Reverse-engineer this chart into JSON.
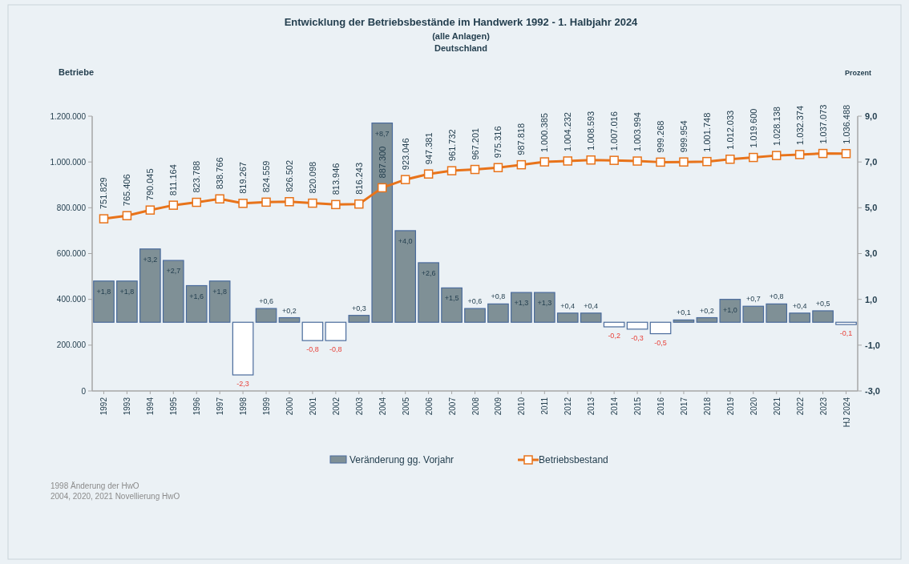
{
  "chart_data": {
    "type": "bar",
    "title": "Entwicklung der Betriebsbestände im Handwerk 1992 - 1. Halbjahr 2024",
    "subtitle": "(alle Anlagen)\nDeutschland",
    "ylabel": "Betriebe",
    "y2label": "Prozent",
    "categories": [
      "1992",
      "1993",
      "1994",
      "1995",
      "1996",
      "1997",
      "1998",
      "1999",
      "2000",
      "2001",
      "2002",
      "2003",
      "2004",
      "2005",
      "2006",
      "2007",
      "2008",
      "2009",
      "2010",
      "2011",
      "2012",
      "2013",
      "2014",
      "2015",
      "2016",
      "2017",
      "2018",
      "2019",
      "2020",
      "2021",
      "2022",
      "2023",
      "HJ 2024"
    ],
    "series": [
      {
        "name": "Veränderung gg. Vorjahr",
        "axis": "y2",
        "colors": [
          "#7f9096",
          "#7f9096",
          "#7f9096",
          "#7f9096",
          "#7f9096",
          "#7f9096",
          "#ffffff",
          "#7f9096",
          "#7f9096",
          "#ffffff",
          "#ffffff",
          "#7f9096",
          "#7f9096",
          "#7f9096",
          "#7f9096",
          "#7f9096",
          "#7f9096",
          "#7f9096",
          "#7f9096",
          "#7f9096",
          "#7f9096",
          "#7f9096",
          "#ffffff",
          "#ffffff",
          "#ffffff",
          "#7f9096",
          "#7f9096",
          "#7f9096",
          "#7f9096",
          "#7f9096",
          "#7f9096",
          "#7f9096",
          "#ffffff"
        ],
        "values": [
          1.8,
          1.8,
          3.2,
          2.7,
          1.6,
          1.8,
          -2.3,
          0.6,
          0.2,
          -0.8,
          -0.8,
          0.3,
          8.7,
          4.0,
          2.6,
          1.5,
          0.6,
          0.8,
          1.3,
          1.3,
          0.4,
          0.4,
          -0.2,
          -0.3,
          -0.5,
          0.1,
          0.2,
          1.0,
          0.7,
          0.8,
          0.4,
          0.5,
          -0.1
        ],
        "value_labels": [
          "+1,8",
          "+1,8",
          "+3,2",
          "+2,7",
          "+1,6",
          "+1,8",
          "-2,3",
          "+0,6",
          "+0,2",
          "-0,8",
          "-0,8",
          "+0,3",
          "+8,7",
          "+4,0",
          "+2,6",
          "+1,5",
          "+0,6",
          "+0,8",
          "+1,3",
          "+1,3",
          "+0,4",
          "+0,4",
          "-0,2",
          "-0,3",
          "-0,5",
          "+0,1",
          "+0,2",
          "+1,0",
          "+0,7",
          "+0,8",
          "+0,4",
          "+0,5",
          "-0,1"
        ]
      },
      {
        "name": "Betriebsbestand",
        "type": "line",
        "color": "#e8731a",
        "marker": "square",
        "values": [
          751829,
          765406,
          790045,
          811164,
          823788,
          838766,
          819267,
          824559,
          826502,
          820098,
          813946,
          816243,
          887300,
          923046,
          947381,
          961732,
          967201,
          975316,
          987818,
          1000385,
          1004232,
          1008593,
          1007016,
          1003994,
          999268,
          999954,
          1001748,
          1012033,
          1019600,
          1028138,
          1032374,
          1037073,
          1036488
        ],
        "value_labels": [
          "751.829",
          "765.406",
          "790.045",
          "811.164",
          "823.788",
          "838.766",
          "819.267",
          "824.559",
          "826.502",
          "820.098",
          "813.946",
          "816.243",
          "887.300",
          "923.046",
          "947.381",
          "961.732",
          "967.201",
          "975.316",
          "987.818",
          "1.000.385",
          "1.004.232",
          "1.008.593",
          "1.007.016",
          "1.003.994",
          "999.268",
          "999.954",
          "1.001.748",
          "1.012.033",
          "1.019.600",
          "1.028.138",
          "1.032.374",
          "1.037.073",
          "1.036.488"
        ]
      }
    ],
    "ylim": [
      0,
      1200000
    ],
    "yticks": [
      {
        "value": 0,
        "label": "0"
      },
      {
        "value": 200000,
        "label": "200.000"
      },
      {
        "value": 400000,
        "label": "400.000"
      },
      {
        "value": 600000,
        "label": "600.000"
      },
      {
        "value": 800000,
        "label": "800.000"
      },
      {
        "value": 1000000,
        "label": "1.000.000"
      },
      {
        "value": 1200000,
        "label": "1.200.000"
      }
    ],
    "y2lim": [
      -3,
      9
    ],
    "y2ticks": [
      {
        "value": -3,
        "label": "-3,0"
      },
      {
        "value": -1,
        "label": "-1,0"
      },
      {
        "value": 1,
        "label": "1,0"
      },
      {
        "value": 3,
        "label": "3,0"
      },
      {
        "value": 5,
        "label": "5,0"
      },
      {
        "value": 7,
        "label": "7,0"
      },
      {
        "value": 9,
        "label": "9,0"
      }
    ],
    "legend": "bottom",
    "annotations": [
      "1998 Änderung der HwO",
      "2004, 2020, 2021 Novellierung HwO"
    ]
  }
}
